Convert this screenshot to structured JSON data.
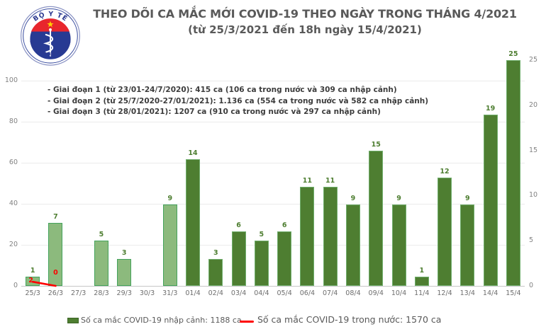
{
  "header": {
    "title_line1": "THEO DÕI CA MẮC MỚI COVID-19 THEO NGÀY TRONG THÁNG 4/2021",
    "title_line2": "(từ 25/3/2021 đến 18h ngày 15/4/2021)"
  },
  "logo": {
    "arc_top": "BỘ Y TẾ",
    "arc_bottom": "MINISTRY OF HEALTH",
    "colors": {
      "ring_blue": "#3b4ea0",
      "disc_blue": "#273a93",
      "band_red": "#e8262d",
      "star_yellow": "#ffd200"
    }
  },
  "annotations": [
    "- Giai đoạn 1 (từ 23/01-24/7/2020): 415 ca (106 ca trong nước và 309 ca nhập cảnh)",
    "- Giai đoạn 2 (từ 25/7/2020-27/01/2021): 1.136 ca (554 ca trong nước và 582 ca nhập cảnh)",
    "- Giai đoạn 3 (từ 28/01/2021): 1207 ca (910 ca trong nước và 297 ca nhập cảnh)"
  ],
  "chart_data": {
    "type": "bar",
    "title": "THEO DÕI CA MẮC MỚI COVID-19 THEO NGÀY TRONG THÁNG 4/2021 (từ 25/3/2021 đến 18h ngày 15/4/2021)",
    "categories": [
      "25/3",
      "26/3",
      "27/3",
      "28/3",
      "29/3",
      "30/3",
      "31/3",
      "01/4",
      "02/4",
      "03/4",
      "04/4",
      "05/4",
      "06/4",
      "07/4",
      "08/4",
      "09/4",
      "10/4",
      "11/4",
      "12/4",
      "13/4",
      "14/4",
      "15/4"
    ],
    "series": [
      {
        "name": "Số ca mắc COVID-19 nhập cảnh: 1188 ca",
        "type": "bar",
        "axis": "right",
        "values": [
          1,
          7,
          0,
          5,
          3,
          0,
          9,
          14,
          3,
          6,
          5,
          6,
          11,
          11,
          9,
          15,
          9,
          1,
          12,
          9,
          19,
          25
        ],
        "color_dark": "#4e7e31",
        "color_light": "#8cba7d",
        "light_through": "31/3"
      },
      {
        "name": "Số ca mắc COVID-19 trong nước: 1570 ca",
        "type": "line",
        "axis": "left",
        "color": "#fe0000",
        "points": [
          {
            "category": "25/3",
            "value": 2
          },
          {
            "category": "26/3",
            "value": 0
          }
        ]
      }
    ],
    "left_axis": {
      "ticks": [
        0,
        20,
        40,
        60,
        80,
        100
      ],
      "range": [
        0,
        113
      ]
    },
    "right_axis": {
      "ticks": [
        0,
        5,
        10,
        15,
        20,
        25
      ],
      "range": [
        0,
        25.8
      ]
    },
    "grid": true,
    "legend_position": "bottom"
  },
  "legend": [
    {
      "label": "Số ca mắc COVID-19 nhập cảnh: 1188 ca",
      "swatch": "square",
      "color": "#4e7e31"
    },
    {
      "label": "Số ca mắc COVID-19 trong nước: 1570 ca",
      "swatch": "line",
      "color": "#fe0000"
    }
  ]
}
